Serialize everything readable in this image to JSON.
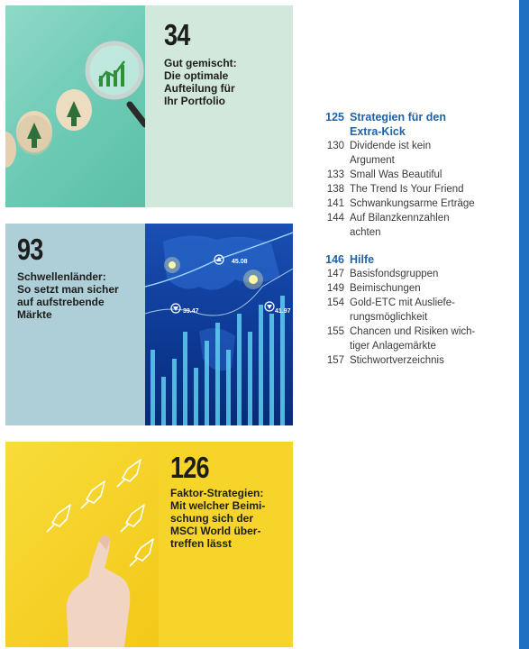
{
  "cards": [
    {
      "number": "34",
      "caption": "Gut gemischt:\nDie optimale\nAufteilung für\nIhr Portfolio"
    },
    {
      "number": "93",
      "caption": "Schwellenländer:\nSo setzt man sicher\nauf aufstrebende\nMärkte"
    },
    {
      "number": "126",
      "caption": "Faktor-Strategien:\nMit welcher Beimi-\nschung sich der\nMSCI World über-\ntreffen lässt"
    }
  ],
  "chart_labels": [
    "45.08",
    "39.47",
    "41.97"
  ],
  "toc": {
    "sections": [
      {
        "page": "125",
        "title": "Strategien für den\nExtra-Kick",
        "items": [
          {
            "page": "130",
            "title": "Dividende ist kein\nArgument"
          },
          {
            "page": "133",
            "title": "Small Was Beautiful"
          },
          {
            "page": "138",
            "title": "The Trend Is Your Friend"
          },
          {
            "page": "141",
            "title": "Schwankungsarme Erträge"
          },
          {
            "page": "144",
            "title": "Auf Bilanzkennzahlen\nachten"
          }
        ]
      },
      {
        "page": "146",
        "title": "Hilfe",
        "items": [
          {
            "page": "147",
            "title": "Basisfondsgruppen"
          },
          {
            "page": "149",
            "title": "Beimischungen"
          },
          {
            "page": "154",
            "title": "Gold-ETC mit Ausliefe-\nrungsmöglichkeit"
          },
          {
            "page": "155",
            "title": "Chancen und Risiken wich-\ntiger Anlagemärkte"
          },
          {
            "page": "157",
            "title": "Stichwortverzeichnis"
          }
        ]
      }
    ]
  },
  "colors": {
    "accent_blue": "#1f62a8",
    "card1_panel": "#d3e8dd",
    "card2_panel": "#aecfd7",
    "card3_panel": "#f6d42a",
    "side_bar": "#1e6fc2"
  }
}
